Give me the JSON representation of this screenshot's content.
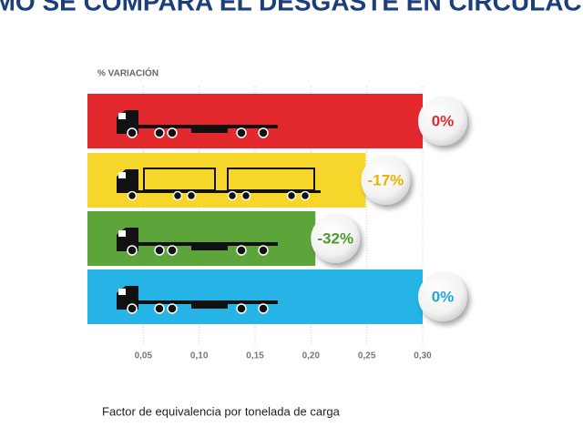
{
  "chart_data": {
    "type": "bar",
    "title": "¿CÓMO SE COMPARA EL DESGASTE EN CIRCULACIÓN?",
    "y_axis_label": "% VARIACIÓN",
    "x_axis_label": "Factor de equivalencia por tonelada de carga",
    "values": [
      0.3,
      0.249,
      0.204,
      0.3
    ],
    "colors": [
      "#e3292e",
      "#f6d62a",
      "#5da53a",
      "#26b3e6"
    ],
    "variation": {
      "values": [
        0,
        -17,
        -32,
        0
      ],
      "value_labels": [
        "0%",
        "-17%",
        "-32%",
        "0%"
      ],
      "colors": [
        "#e3292e",
        "#e6b400",
        "#4f9a2c",
        "#1fa8dc"
      ]
    },
    "xlim": [
      0,
      0.3
    ],
    "xticks": [
      {
        "value": 0.05,
        "label": "0,05"
      },
      {
        "value": 0.1,
        "label": "0,10"
      },
      {
        "value": 0.15,
        "label": "0,15"
      },
      {
        "value": 0.2,
        "label": "0,20"
      },
      {
        "value": 0.25,
        "label": "0,25"
      },
      {
        "value": 0.3,
        "label": "0,30"
      }
    ],
    "grid": true
  }
}
